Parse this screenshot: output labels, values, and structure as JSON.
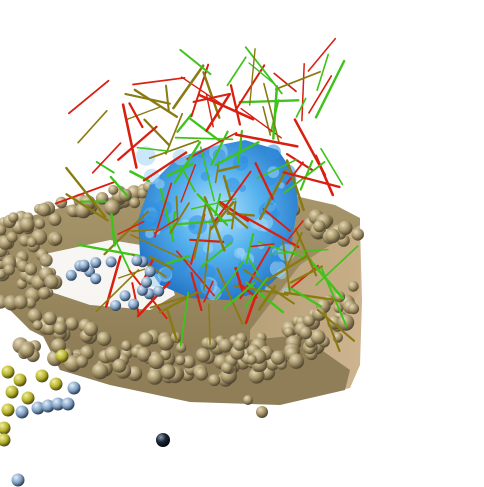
{
  "scene": {
    "description_label": "",
    "background": "#ffffff",
    "colors": {
      "membrane_bead_light": "#c9b98f",
      "membrane_bead_mid": "#9d8c63",
      "membrane_bead_dark": "#5e5238",
      "membrane_side": "#b89f76",
      "protein_surface": "#2f8fe0",
      "protein_highlight": "#9fd6f5",
      "stick_red": "#d91f10",
      "stick_green": "#3fc21a",
      "stick_olive": "#8a7a12",
      "yellow_bead": "#c7c431",
      "blue_bead": "#8fb3d6",
      "dark_bead": "#1a2230"
    }
  }
}
